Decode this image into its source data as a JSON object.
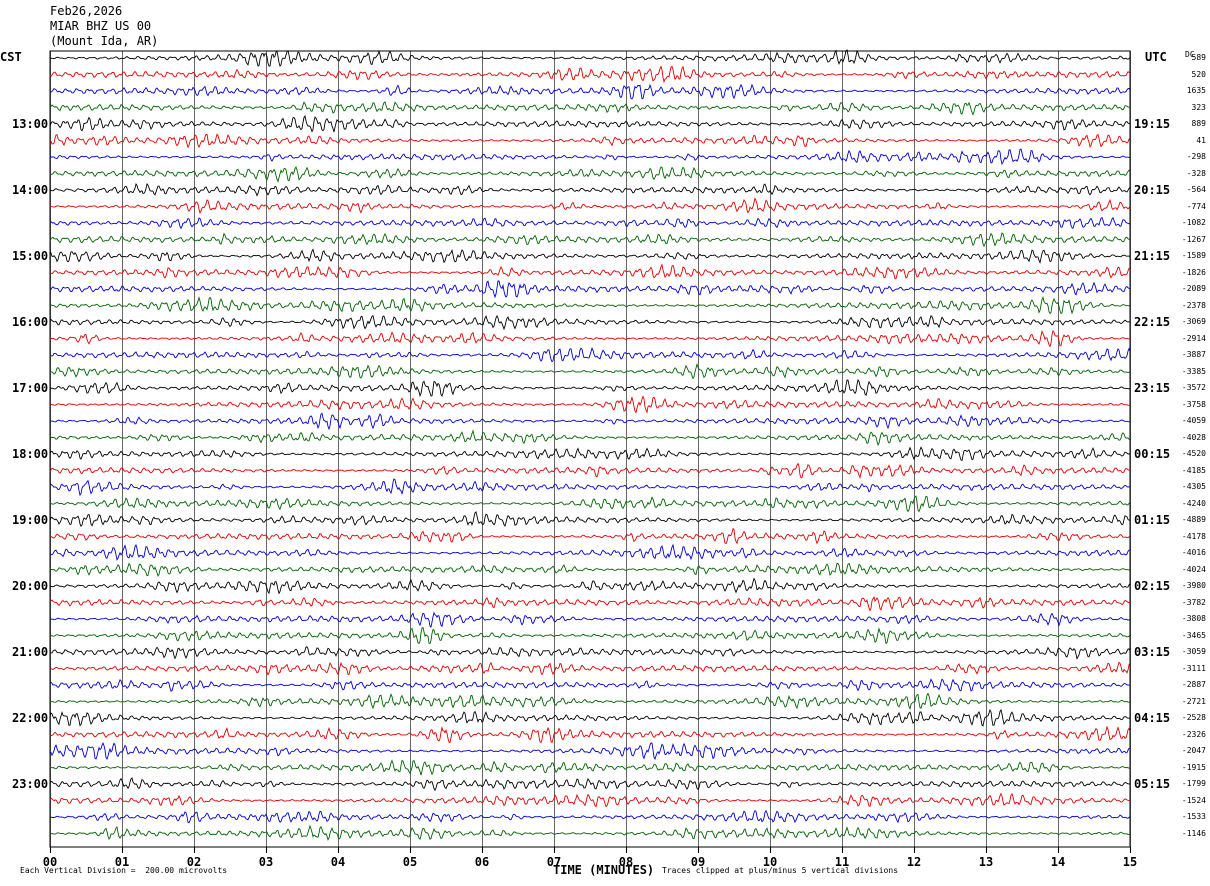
{
  "header": {
    "date": "Feb26,2026",
    "station": "MIAR BHZ US 00",
    "location": "(Mount Ida, AR)"
  },
  "left_axis_title": "CST",
  "right_axis_title": "UTC",
  "dc_label": "DC",
  "footer": {
    "scale_note": "Each Vertical Division =  200.00 microvolts",
    "xlabel": "TIME (MINUTES)",
    "clip_note": "Traces clipped at plus/minus 5 vertical divisions"
  },
  "colors": {
    "trace_cycle": [
      "#000000",
      "#e00000",
      "#0000d0",
      "#006400"
    ],
    "grid": "#000000",
    "background": "#ffffff"
  },
  "chart_data": {
    "type": "line",
    "title": "MIAR BHZ US 00",
    "xlabel": "TIME (MINUTES)",
    "xlim": [
      0,
      15
    ],
    "x_ticks": [
      "00",
      "01",
      "02",
      "03",
      "04",
      "05",
      "06",
      "07",
      "08",
      "09",
      "10",
      "11",
      "12",
      "13",
      "14",
      "15"
    ],
    "cst_hour_labels": [
      "13:00",
      "14:00",
      "15:00",
      "16:00",
      "17:00",
      "18:00",
      "19:00",
      "20:00",
      "21:00",
      "22:00",
      "23:00"
    ],
    "utc_hour_labels": [
      "19:15",
      "20:15",
      "21:15",
      "22:15",
      "23:15",
      "00:15",
      "01:15",
      "02:15",
      "03:15",
      "04:15",
      "05:15"
    ],
    "trace_count": 48,
    "traces_per_hour": 4,
    "first_hour_label_trace": 4,
    "dc_offsets": [
      "589",
      "520",
      "1635",
      "323",
      "889",
      "41",
      "-298",
      "-328",
      "-564",
      "-774",
      "-1082",
      "-1267",
      "-1589",
      "-1826",
      "-2089",
      "-2378",
      "-3069",
      "-2914",
      "-3887",
      "-3385",
      "-3572",
      "-3758",
      "-4059",
      "-4028",
      "-4520",
      "-4185",
      "-4305",
      "-4240",
      "-4889",
      "-4178",
      "-4016",
      "-4024",
      "-3980",
      "-3782",
      "-3808",
      "-3465",
      "-3059",
      "-3111",
      "-2887",
      "-2721",
      "-2528",
      "-2326",
      "-2047",
      "-1915",
      "-1799",
      "-1524",
      "-1533",
      "-1146"
    ],
    "vertical_division_microvolts": 200.0,
    "clip_divisions": 5,
    "grid": true
  }
}
